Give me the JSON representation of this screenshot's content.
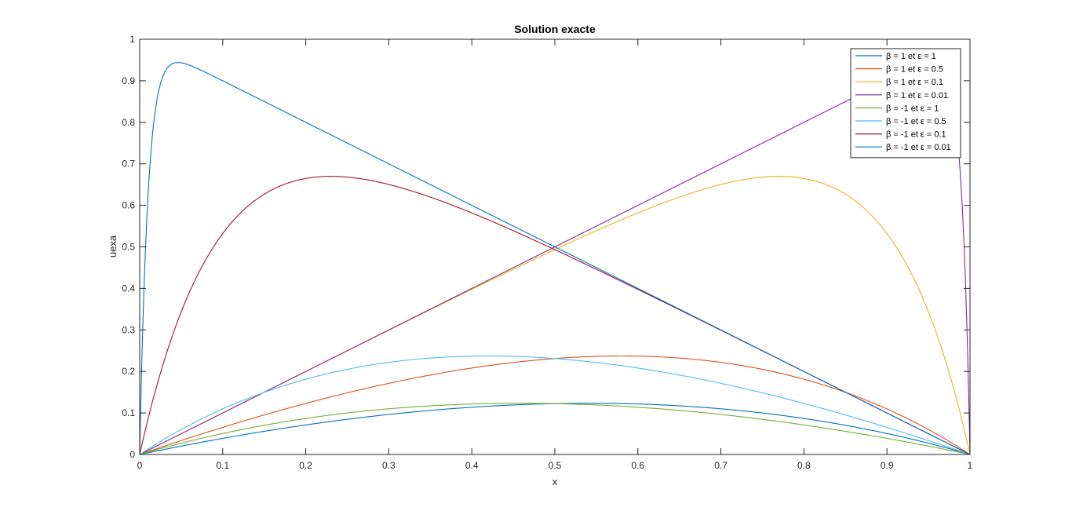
{
  "chart_data": {
    "type": "line",
    "title": "Solution exacte",
    "xlabel": "x",
    "ylabel": "uexa",
    "xlim": [
      0,
      1
    ],
    "ylim": [
      0,
      1
    ],
    "xticks": [
      "0",
      "0.1",
      "0.2",
      "0.3",
      "0.4",
      "0.5",
      "0.6",
      "0.7",
      "0.8",
      "0.9",
      "1"
    ],
    "yticks": [
      "0",
      "0.1",
      "0.2",
      "0.3",
      "0.4",
      "0.5",
      "0.6",
      "0.7",
      "0.8",
      "0.9",
      "1"
    ],
    "grid": false,
    "legend_position": "top-right",
    "series": [
      {
        "name": "β = 1 et ε = 1",
        "beta": 1,
        "epsilon": 1,
        "color": "#0072BD"
      },
      {
        "name": "β = 1 et ε = 0.5",
        "beta": 1,
        "epsilon": 0.5,
        "color": "#D95319"
      },
      {
        "name": "β = 1 et ε = 0.1",
        "beta": 1,
        "epsilon": 0.1,
        "color": "#EDB120"
      },
      {
        "name": "β = 1 et ε = 0.01",
        "beta": 1,
        "epsilon": 0.01,
        "color": "#7E2F8E"
      },
      {
        "name": "β = -1 et ε = 1",
        "beta": -1,
        "epsilon": 1,
        "color": "#77AC30"
      },
      {
        "name": "β = -1 et ε = 0.5",
        "beta": -1,
        "epsilon": 0.5,
        "color": "#4DBEEE"
      },
      {
        "name": "β = -1 et ε = 0.1",
        "beta": -1,
        "epsilon": 0.1,
        "color": "#A2142F"
      },
      {
        "name": "β = -1 et ε = 0.01",
        "beta": -1,
        "epsilon": 0.01,
        "color": "#0072BD"
      }
    ]
  }
}
